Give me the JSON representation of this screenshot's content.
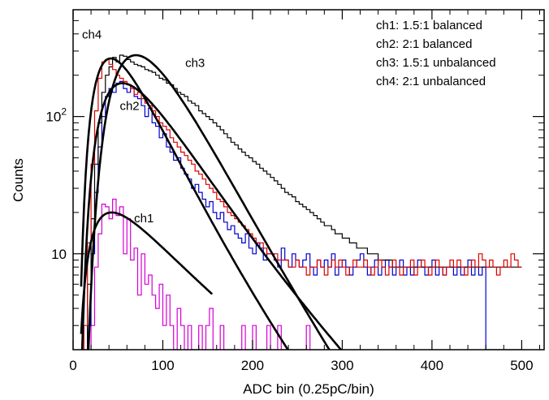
{
  "chart_data": {
    "type": "line",
    "title": "",
    "xlabel": "ADC bin (0.25pC/bin)",
    "ylabel": "Counts",
    "xlim": [
      0,
      525
    ],
    "ylim": [
      2,
      600
    ],
    "y_scale": "log",
    "x_ticks": [
      0,
      100,
      200,
      300,
      400,
      500
    ],
    "x_tick_labels": [
      "0",
      "100",
      "200",
      "300",
      "400",
      "500"
    ],
    "y_tick_labels": [
      {
        "value": 10,
        "base": "10",
        "exp": ""
      },
      {
        "value": 100,
        "base": "10",
        "exp": "2"
      }
    ],
    "grid": false,
    "legend": {
      "placement": "top-right",
      "entries": [
        "ch1:  1.5:1 balanced",
        "ch2:  2:1 balanced",
        "ch3:  1.5:1 unbalanced",
        "ch4:  2:1 unbalanced"
      ]
    },
    "histogram_bin_width": 4,
    "histograms": [
      {
        "id": "ch1",
        "color": "#d400d4",
        "x_start": 0,
        "values": [
          0.1,
          0.1,
          0.1,
          0.1,
          0.1,
          3,
          8,
          14,
          23,
          22,
          18,
          25,
          19,
          22,
          10,
          18,
          9,
          11,
          5,
          10,
          6,
          7,
          5,
          4,
          6,
          3,
          5,
          3,
          2,
          4,
          3,
          2,
          3,
          2,
          2,
          3,
          2,
          3,
          4,
          2,
          2,
          3,
          2,
          2,
          2,
          2,
          2,
          3,
          2,
          2,
          3,
          2,
          2,
          2,
          3,
          2,
          2,
          3,
          2,
          2,
          2,
          2,
          2,
          2,
          2,
          3,
          2,
          2,
          2,
          2,
          2,
          2,
          2,
          2,
          2,
          2,
          2,
          2,
          2,
          2
        ]
      },
      {
        "id": "ch2",
        "color": "#0000cc",
        "x_start": 0,
        "values": [
          0.1,
          0.1,
          0.1,
          1,
          3,
          10,
          28,
          60,
          100,
          140,
          160,
          150,
          175,
          180,
          160,
          150,
          165,
          140,
          135,
          120,
          100,
          115,
          90,
          85,
          70,
          75,
          60,
          55,
          48,
          50,
          42,
          38,
          35,
          30,
          32,
          28,
          25,
          22,
          24,
          20,
          18,
          20,
          17,
          15,
          16,
          14,
          13,
          12,
          14,
          11,
          10,
          12,
          11,
          9,
          10,
          10,
          9,
          8,
          11,
          9,
          8,
          10,
          9,
          8,
          9,
          10,
          8,
          7,
          9,
          8,
          9,
          8,
          10,
          7,
          8,
          9,
          8,
          7,
          8,
          9,
          10,
          8,
          7,
          8,
          9,
          7,
          8,
          9,
          8,
          7,
          8,
          9,
          7,
          8,
          7,
          8,
          9,
          8,
          7,
          8,
          9,
          7,
          8,
          7,
          8,
          8,
          7,
          8,
          7,
          8,
          9,
          7,
          8,
          7,
          8,
          2,
          2,
          2,
          2,
          2,
          2,
          2,
          2,
          2,
          2
        ]
      },
      {
        "id": "ch3",
        "color": "#000000",
        "x_start": 0,
        "values": [
          0.1,
          0.1,
          0.1,
          2,
          6,
          18,
          45,
          90,
          150,
          200,
          230,
          270,
          250,
          280,
          275,
          260,
          250,
          240,
          235,
          230,
          220,
          215,
          210,
          200,
          190,
          185,
          175,
          170,
          160,
          150,
          145,
          140,
          130,
          125,
          120,
          110,
          105,
          100,
          95,
          90,
          85,
          80,
          75,
          70,
          65,
          62,
          58,
          55,
          52,
          50,
          47,
          45,
          42,
          40,
          38,
          36,
          34,
          32,
          30,
          28,
          27,
          26,
          24,
          23,
          22,
          21,
          20,
          19,
          18,
          17,
          16,
          16,
          15,
          14,
          14,
          13,
          13,
          12,
          12,
          11,
          11,
          11,
          10,
          10,
          10,
          9,
          9,
          9,
          9,
          8,
          8,
          8,
          8,
          8,
          8,
          8,
          8,
          8,
          8,
          8,
          8,
          8,
          8,
          8,
          8,
          8,
          8,
          8,
          8,
          8,
          8,
          8,
          8,
          8,
          8,
          8,
          8,
          8,
          8,
          8,
          8,
          8,
          8,
          8,
          8
        ]
      },
      {
        "id": "ch4",
        "color": "#dd0000",
        "x_start": 0,
        "values": [
          0.1,
          0.1,
          0.1,
          3,
          12,
          45,
          110,
          190,
          250,
          260,
          240,
          220,
          200,
          190,
          180,
          170,
          160,
          145,
          150,
          135,
          125,
          120,
          110,
          100,
          90,
          85,
          80,
          70,
          65,
          60,
          55,
          52,
          48,
          45,
          40,
          38,
          35,
          32,
          30,
          28,
          25,
          24,
          22,
          20,
          19,
          18,
          17,
          16,
          15,
          14,
          13,
          12,
          12,
          11,
          10,
          10,
          10,
          9,
          9,
          9,
          8,
          8,
          9,
          8,
          8,
          7,
          8,
          8,
          9,
          8,
          7,
          8,
          9,
          8,
          9,
          8,
          7,
          8,
          9,
          8,
          8,
          9,
          8,
          7,
          8,
          9,
          8,
          7,
          8,
          9,
          8,
          7,
          8,
          8,
          9,
          7,
          8,
          9,
          8,
          7,
          8,
          9,
          8,
          7,
          8,
          9,
          8,
          9,
          8,
          7,
          8,
          9,
          8,
          10,
          9,
          8,
          9,
          8,
          7,
          8,
          9,
          8,
          10,
          9,
          8
        ]
      }
    ],
    "fits": [
      {
        "id": "fit-ch1",
        "label": "ch1",
        "peak_x": 43,
        "peak_y": 20,
        "tail": 0.6,
        "x_start": 9,
        "x_end": 155
      },
      {
        "id": "fit-ch2",
        "label": "ch2",
        "peak_x": 55,
        "peak_y": 175,
        "tail": 0.32,
        "x_start": 9,
        "x_end": 435
      },
      {
        "id": "fit-ch3",
        "label": "ch3",
        "peak_x": 70,
        "peak_y": 280,
        "tail": 0.2,
        "x_start": 9,
        "x_end": 525
      },
      {
        "id": "fit-ch4",
        "label": "ch4",
        "peak_x": 42,
        "peak_y": 265,
        "tail": 0.31,
        "x_start": 9,
        "x_end": 435
      }
    ],
    "curve_labels": [
      {
        "text": "ch1",
        "x": 68,
        "y": 17
      },
      {
        "text": "ch2",
        "x": 52,
        "y": 112
      },
      {
        "text": "ch3",
        "x": 125,
        "y": 230
      },
      {
        "text": "ch4",
        "x": 10,
        "y": 370
      }
    ]
  }
}
